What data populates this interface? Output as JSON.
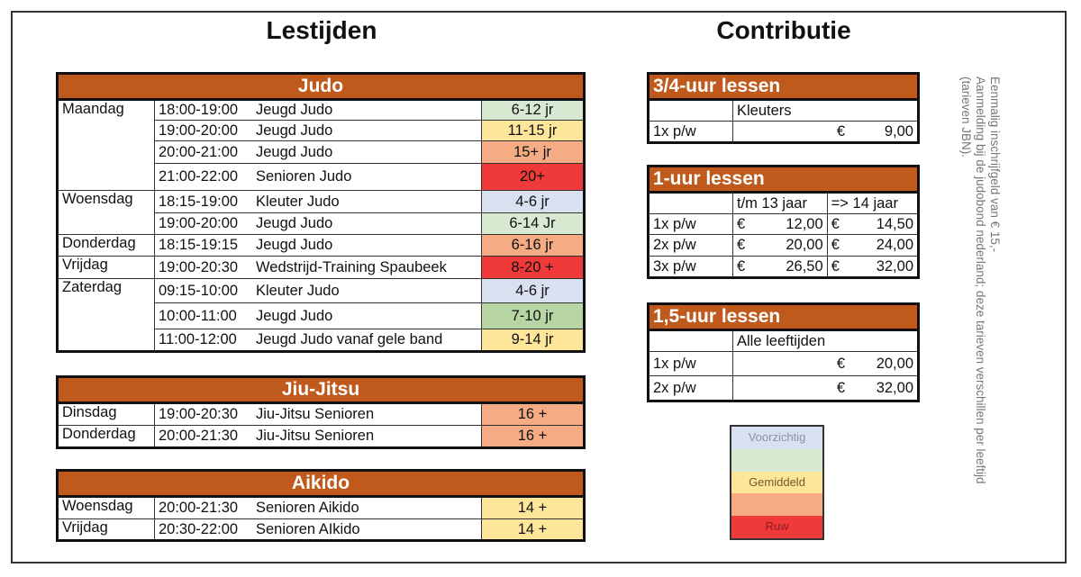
{
  "titles": {
    "left": "Lestijden",
    "right": "Contributie"
  },
  "colors": {
    "header": "#c05a1c",
    "green": "#d8e9d2",
    "darkgreen": "#b7d6a4",
    "yellow": "#fde699",
    "salmon": "#f5ab84",
    "red": "#f03a3a",
    "blue": "#d9e0f0"
  },
  "schedules": [
    {
      "title": "Judo",
      "rows": [
        {
          "day": "Maandag",
          "span": 4,
          "time": "18:00-19:00",
          "class": "Jeugd Judo",
          "age": "6-12 jr",
          "color": "green",
          "h": 23
        },
        {
          "time": "19:00-20:00",
          "class": "Jeugd Judo",
          "age": "11-15 jr",
          "color": "yellow",
          "h": 23
        },
        {
          "time": "20:00-21:00",
          "class": "Jeugd Judo",
          "age": "15+ jr",
          "color": "salmon",
          "h": 25
        },
        {
          "time": "21:00-22:00",
          "class": "Senioren Judo",
          "age": "20+",
          "color": "red",
          "h": 30
        },
        {
          "day": "Woensdag",
          "span": 2,
          "time": "18:15-19:00",
          "class": "Kleuter Judo",
          "age": "4-6 jr",
          "color": "blue",
          "h": 25
        },
        {
          "time": "19:00-20:00",
          "class": "Jeugd Judo",
          "age": "6-14 Jr",
          "color": "green",
          "h": 24
        },
        {
          "day": "Donderdag",
          "span": 1,
          "time": "18:15-19:15",
          "class": "Jeugd Judo",
          "age": "6-16 jr",
          "color": "salmon",
          "h": 24
        },
        {
          "day": "Vrijdag",
          "span": 1,
          "time": "19:00-20:30",
          "class": "Wedstrijd-Training Spaubeek",
          "age": "8-20 +",
          "color": "red",
          "h": 25
        },
        {
          "day": "Zaterdag",
          "span": 3,
          "time": "09:15-10:00",
          "class": "Kleuter Judo",
          "age": "4-6 jr",
          "color": "blue",
          "h": 27
        },
        {
          "time": "10:00-11:00",
          "class": "Jeugd Judo",
          "age": "7-10 jr",
          "color": "darkgreen",
          "h": 29
        },
        {
          "time": "11:00-12:00",
          "class": "Jeugd Judo vanaf gele band",
          "age": "9-14 jr",
          "color": "yellow",
          "h": 25
        }
      ]
    },
    {
      "title": "Jiu-Jitsu",
      "rows": [
        {
          "day": "Dinsdag",
          "span": 1,
          "time": "19:00-20:30",
          "class": "Jiu-Jitsu Senioren",
          "age": "16 +",
          "color": "salmon",
          "h": 25
        },
        {
          "day": "Donderdag",
          "span": 1,
          "time": "20:00-21:30",
          "class": "Jiu-Jitsu Senioren",
          "age": "16 +",
          "color": "salmon",
          "h": 25
        }
      ]
    },
    {
      "title": "Aikido",
      "rows": [
        {
          "day": "Woensdag",
          "span": 1,
          "time": "20:00-21:30",
          "class": "Senioren Aikido",
          "age": "14 +",
          "color": "yellow",
          "h": 25
        },
        {
          "day": "Vrijdag",
          "span": 1,
          "time": "20:30-22:00",
          "class": "Senioren AIkido",
          "age": "14 +",
          "color": "yellow",
          "h": 24
        }
      ]
    }
  ],
  "prices": [
    {
      "title": "3/4-uur lessen",
      "headers": [
        "Kleuters"
      ],
      "rows": [
        {
          "label": "1x p/w",
          "cells": [
            {
              "cur": "€",
              "amt": "9,00"
            }
          ],
          "h": 24
        }
      ]
    },
    {
      "title": "1-uur lessen",
      "headers": [
        "t/m 13 jaar",
        "=> 14 jaar"
      ],
      "rows": [
        {
          "label": "1x p/w",
          "cells": [
            {
              "cur": "€",
              "amt": "12,00"
            },
            {
              "cur": "€",
              "amt": "14,50"
            }
          ],
          "h": 23
        },
        {
          "label": "2x p/w",
          "cells": [
            {
              "cur": "€",
              "amt": "20,00"
            },
            {
              "cur": "€",
              "amt": "24,00"
            }
          ],
          "h": 24
        },
        {
          "label": "3x p/w",
          "cells": [
            {
              "cur": "€",
              "amt": "26,50"
            },
            {
              "cur": "€",
              "amt": "32,00"
            }
          ],
          "h": 24
        }
      ]
    },
    {
      "title": "1,5-uur lessen",
      "headers": [
        "Alle leeftijden"
      ],
      "rows": [
        {
          "label": "1x p/w",
          "cells": [
            {
              "cur": "€",
              "amt": "20,00"
            }
          ],
          "h": 27
        },
        {
          "label": "2x p/w",
          "cells": [
            {
              "cur": "€",
              "amt": "32,00"
            }
          ],
          "h": 28
        }
      ]
    }
  ],
  "legend": [
    {
      "label": "Voorzichtig",
      "color": "blue",
      "text": "#8a93a8"
    },
    {
      "label": "",
      "color": "green"
    },
    {
      "label": "Gemiddeld",
      "color": "yellow",
      "text": "#6b5d2a"
    },
    {
      "label": "",
      "color": "salmon"
    },
    {
      "label": "Ruw",
      "color": "red",
      "text": "#8a1f1f"
    }
  ],
  "note": [
    "Eenmalig inschrijfgeld van € 15,-",
    "Aanmelding bij de judobond nederland; deze tarieven verschillen per leeftijd",
    "(tarieven JBN)."
  ]
}
